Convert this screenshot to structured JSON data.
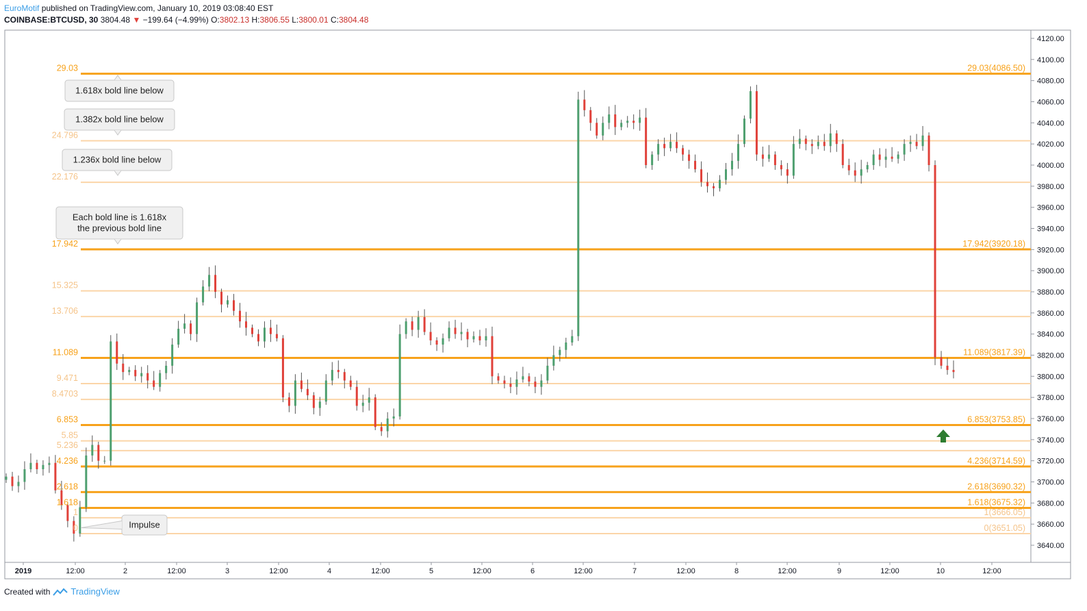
{
  "header": {
    "author": "EuroMotif",
    "published": "published on TradingView.com, January 10, 2019 03:08:40 EST",
    "symbol": "COINBASE:BTCUSD, 30",
    "last": "3804.48",
    "change": "−199.64 (−4.99%)",
    "o_label": "O:",
    "o_val": "3802.13",
    "h_label": "H:",
    "h_val": "3806.55",
    "l_label": "L:",
    "l_val": "3800.01",
    "c_label": "C:",
    "c_val": "3804.48"
  },
  "footer": {
    "created_with": "Created with",
    "brand": "TradingView"
  },
  "colors": {
    "bold_line": "#f7a21b",
    "light_line": "#fbd5a8",
    "up_candle": "#4e9f6f",
    "down_candle": "#e0413a",
    "arrow": "#2e7d32",
    "axis_text": "#131722",
    "callout_fill": "#f0f0f0",
    "callout_stroke": "#c8c8c8"
  },
  "chart_data": {
    "type": "candlestick",
    "ylim": [
      3630,
      4130
    ],
    "y_ticks": [
      3640,
      3660,
      3680,
      3700,
      3720,
      3740,
      3760,
      3780,
      3800,
      3820,
      3840,
      3860,
      3880,
      3900,
      3920,
      3940,
      3960,
      3980,
      4000,
      4020,
      4040,
      4060,
      4080,
      4100,
      4120
    ],
    "y_tick_labels": [
      "3640.00",
      "3660.00",
      "3680.00",
      "3700.00",
      "3720.00",
      "3740.00",
      "3760.00",
      "3780.00",
      "3800.00",
      "3820.00",
      "3840.00",
      "3860.00",
      "3880.00",
      "3900.00",
      "3920.00",
      "3940.00",
      "3960.00",
      "3980.00",
      "4000.00",
      "4020.00",
      "4040.00",
      "4060.00",
      "4080.00",
      "4100.00",
      "4120.00"
    ],
    "x_ticks": [
      "2019",
      "12:00",
      "2",
      "12:00",
      "3",
      "12:00",
      "4",
      "12:00",
      "5",
      "12:00",
      "6",
      "12:00",
      "7",
      "12:00",
      "8",
      "12:00",
      "9",
      "12:00",
      "10",
      "12:00"
    ],
    "x_tick_bold": [
      true,
      false,
      false,
      false,
      false,
      false,
      false,
      false,
      false,
      false,
      false,
      false,
      false,
      false,
      false,
      false,
      false,
      false,
      false,
      false
    ],
    "fib_levels": [
      {
        "left": "29.03",
        "right": "29.03(4086.50)",
        "price": 4086.5,
        "bold": true
      },
      {
        "left": "24.796",
        "right": "",
        "price": 4023.0,
        "bold": false
      },
      {
        "left": "22.176",
        "right": "",
        "price": 3983.7,
        "bold": false
      },
      {
        "left": "17.942",
        "right": "17.942(3920.18)",
        "price": 3920.18,
        "bold": true
      },
      {
        "left": "15.325",
        "right": "",
        "price": 3880.9,
        "bold": false
      },
      {
        "left": "13.706",
        "right": "",
        "price": 3856.6,
        "bold": false
      },
      {
        "left": "11.089",
        "right": "11.089(3817.39)",
        "price": 3817.39,
        "bold": true
      },
      {
        "left": "9.471",
        "right": "",
        "price": 3793.1,
        "bold": false
      },
      {
        "left": "8.4703",
        "right": "",
        "price": 3778.1,
        "bold": false
      },
      {
        "left": "6.853",
        "right": "6.853(3753.85)",
        "price": 3753.85,
        "bold": true
      },
      {
        "left": "5.85",
        "right": "",
        "price": 3738.8,
        "bold": false
      },
      {
        "left": "5.236",
        "right": "",
        "price": 3729.6,
        "bold": false
      },
      {
        "left": "4.236",
        "right": "4.236(3714.59)",
        "price": 3714.59,
        "bold": true
      },
      {
        "left": "2.618",
        "right": "2.618(3690.32)",
        "price": 3690.32,
        "bold": true
      },
      {
        "left": "1.618",
        "right": "1.618(3675.32)",
        "price": 3675.32,
        "bold": true
      },
      {
        "left": "1",
        "right": "1(3666.05)",
        "price": 3666.05,
        "bold": false
      },
      {
        "left": "0",
        "right": "0(3651.05)",
        "price": 3651.05,
        "bold": false
      }
    ],
    "annotations": [
      {
        "text": "1.618x bold line below"
      },
      {
        "text": "1.382x bold line below"
      },
      {
        "text": "1.236x bold line below"
      },
      {
        "text": "Each bold line is 1.618x"
      },
      {
        "text": "the previous bold line"
      },
      {
        "text": "Impulse"
      }
    ],
    "series": [
      {
        "price": 3705
      },
      {
        "price": 3696
      },
      {
        "price": 3700
      },
      {
        "price": 3712
      },
      {
        "price": 3718
      },
      {
        "price": 3712
      },
      {
        "price": 3716
      },
      {
        "price": 3718
      },
      {
        "price": 3692
      },
      {
        "price": 3678
      },
      {
        "price": 3663
      },
      {
        "price": 3651
      },
      {
        "price": 3676
      },
      {
        "price": 3725
      },
      {
        "price": 3735
      },
      {
        "price": 3720
      },
      {
        "price": 3720
      },
      {
        "price": 3833
      },
      {
        "price": 3812
      },
      {
        "price": 3804
      },
      {
        "price": 3806
      },
      {
        "price": 3800
      },
      {
        "price": 3803
      },
      {
        "price": 3796
      },
      {
        "price": 3790
      },
      {
        "price": 3803
      },
      {
        "price": 3810
      },
      {
        "price": 3830
      },
      {
        "price": 3845
      },
      {
        "price": 3850
      },
      {
        "price": 3840
      },
      {
        "price": 3870
      },
      {
        "price": 3885
      },
      {
        "price": 3896
      },
      {
        "price": 3880
      },
      {
        "price": 3868
      },
      {
        "price": 3872
      },
      {
        "price": 3862
      },
      {
        "price": 3852
      },
      {
        "price": 3846
      },
      {
        "price": 3840
      },
      {
        "price": 3833
      },
      {
        "price": 3846
      },
      {
        "price": 3840
      },
      {
        "price": 3836
      },
      {
        "price": 3780
      },
      {
        "price": 3772
      },
      {
        "price": 3796
      },
      {
        "price": 3788
      },
      {
        "price": 3782
      },
      {
        "price": 3770
      },
      {
        "price": 3776
      },
      {
        "price": 3796
      },
      {
        "price": 3806
      },
      {
        "price": 3804
      },
      {
        "price": 3796
      },
      {
        "price": 3790
      },
      {
        "price": 3772
      },
      {
        "price": 3775
      },
      {
        "price": 3780
      },
      {
        "price": 3752
      },
      {
        "price": 3748
      },
      {
        "price": 3760
      },
      {
        "price": 3762
      },
      {
        "price": 3840
      },
      {
        "price": 3852
      },
      {
        "price": 3844
      },
      {
        "price": 3856
      },
      {
        "price": 3842
      },
      {
        "price": 3834
      },
      {
        "price": 3830
      },
      {
        "price": 3836
      },
      {
        "price": 3846
      },
      {
        "price": 3840
      },
      {
        "price": 3842
      },
      {
        "price": 3835
      },
      {
        "price": 3838
      },
      {
        "price": 3834
      },
      {
        "price": 3838
      },
      {
        "price": 3800
      },
      {
        "price": 3796
      },
      {
        "price": 3793
      },
      {
        "price": 3790
      },
      {
        "price": 3797
      },
      {
        "price": 3800
      },
      {
        "price": 3795
      },
      {
        "price": 3790
      },
      {
        "price": 3796
      },
      {
        "price": 3810
      },
      {
        "price": 3820
      },
      {
        "price": 3825
      },
      {
        "price": 3832
      },
      {
        "price": 3838
      },
      {
        "price": 4062
      },
      {
        "price": 4052
      },
      {
        "price": 4040
      },
      {
        "price": 4028
      },
      {
        "price": 4040
      },
      {
        "price": 4048
      },
      {
        "price": 4036
      },
      {
        "price": 4040
      },
      {
        "price": 4042
      },
      {
        "price": 4040
      },
      {
        "price": 4045
      },
      {
        "price": 4000
      },
      {
        "price": 4010
      },
      {
        "price": 4020
      },
      {
        "price": 4016
      },
      {
        "price": 4022
      },
      {
        "price": 4016
      },
      {
        "price": 4010
      },
      {
        "price": 4004
      },
      {
        "price": 3996
      },
      {
        "price": 3984
      },
      {
        "price": 3980
      },
      {
        "price": 3978
      },
      {
        "price": 3986
      },
      {
        "price": 3996
      },
      {
        "price": 4004
      },
      {
        "price": 4020
      },
      {
        "price": 4044
      },
      {
        "price": 4070
      },
      {
        "price": 4010
      },
      {
        "price": 4006
      },
      {
        "price": 4010
      },
      {
        "price": 4000
      },
      {
        "price": 3996
      },
      {
        "price": 3990
      },
      {
        "price": 4020
      },
      {
        "price": 4025
      },
      {
        "price": 4020
      },
      {
        "price": 4018
      },
      {
        "price": 4022
      },
      {
        "price": 4018
      },
      {
        "price": 4030
      },
      {
        "price": 4020
      },
      {
        "price": 4000
      },
      {
        "price": 3995
      },
      {
        "price": 3990
      },
      {
        "price": 3996
      },
      {
        "price": 4000
      },
      {
        "price": 4010
      },
      {
        "price": 4005
      },
      {
        "price": 4008
      },
      {
        "price": 4006
      },
      {
        "price": 4010
      },
      {
        "price": 4020
      },
      {
        "price": 4022
      },
      {
        "price": 4018
      },
      {
        "price": 4028
      },
      {
        "price": 4000
      },
      {
        "price": 3818
      },
      {
        "price": 3810
      },
      {
        "price": 3806
      },
      {
        "price": 3804
      }
    ]
  }
}
